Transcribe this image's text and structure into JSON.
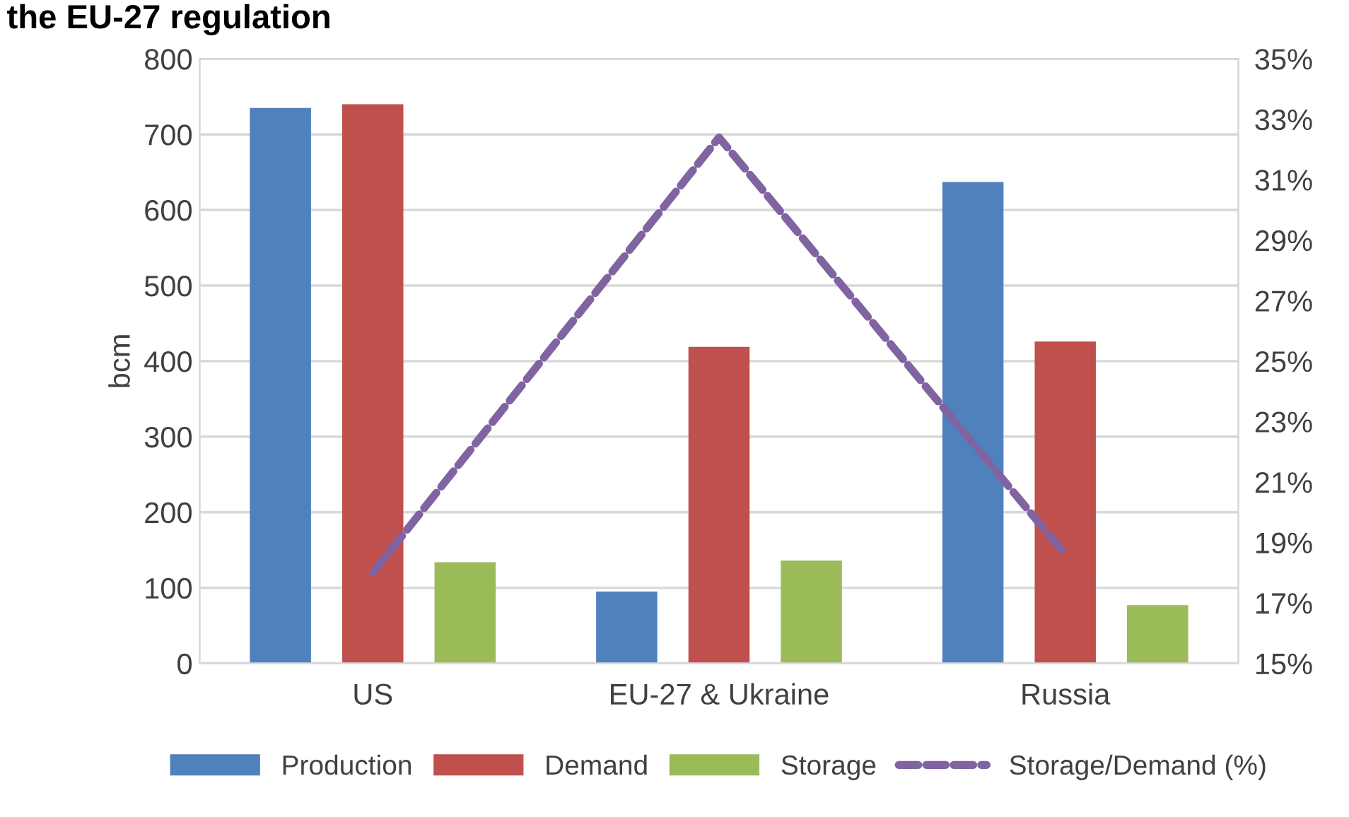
{
  "chart_data": {
    "type": "bar",
    "title": "the EU-27 regulation",
    "ylabel": "bcm",
    "categories": [
      "US",
      "EU-27 & Ukraine",
      "Russia"
    ],
    "series": [
      {
        "name": "Production",
        "color": "#4f81bd",
        "values": [
          735,
          95,
          637
        ]
      },
      {
        "name": "Demand",
        "color": "#c0504d",
        "values": [
          740,
          419,
          426
        ]
      },
      {
        "name": "Storage",
        "color": "#9bbb59",
        "values": [
          134,
          136,
          77
        ]
      },
      {
        "name": "Storage/Demand (%)",
        "color": "#8064a2",
        "type": "line",
        "axis": "y2",
        "line_style": "dashed",
        "values": [
          18.0,
          32.4,
          18.6
        ]
      }
    ],
    "ylim": [
      0,
      800
    ],
    "yticks": [
      0,
      100,
      200,
      300,
      400,
      500,
      600,
      700,
      800
    ],
    "y2lim": [
      15,
      35
    ],
    "y2ticks": [
      {
        "value": 15,
        "label": "15%"
      },
      {
        "value": 17,
        "label": "17%"
      },
      {
        "value": 19,
        "label": "19%"
      },
      {
        "value": 21,
        "label": "21%"
      },
      {
        "value": 23,
        "label": "23%"
      },
      {
        "value": 25,
        "label": "25%"
      },
      {
        "value": 27,
        "label": "27%"
      },
      {
        "value": 29,
        "label": "29%"
      },
      {
        "value": 31,
        "label": "31%"
      },
      {
        "value": 33,
        "label": "33%"
      },
      {
        "value": 35,
        "label": "35%"
      }
    ],
    "grid": "y",
    "legend": "bottom"
  }
}
